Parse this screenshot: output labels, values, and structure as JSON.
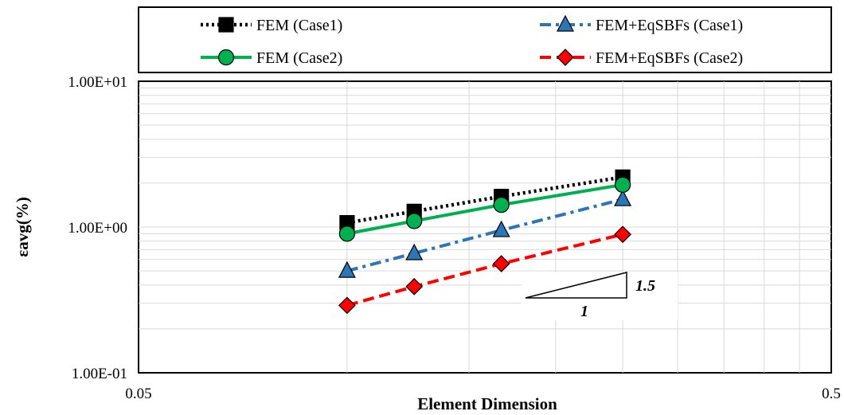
{
  "chart_data": {
    "type": "line",
    "xlabel": "Element Dimension",
    "ylabel": "εavg(%)",
    "xscale": "log",
    "yscale": "log",
    "xlim": [
      0.05,
      0.5
    ],
    "ylim": [
      0.1,
      10
    ],
    "x_tick_labels": [
      "0.05",
      "0.5"
    ],
    "y_tick_labels": [
      "1.00E-01",
      "1.00E+00",
      "1.00E+01"
    ],
    "grid": true,
    "legend_position": "top",
    "x": [
      0.1,
      0.125,
      0.167,
      0.25
    ],
    "series": [
      {
        "name": "FEM (Case1)",
        "values": [
          1.07,
          1.28,
          1.62,
          2.2
        ],
        "color": "#000000",
        "style": "dotted",
        "marker": "square"
      },
      {
        "name": "FEM+EqSBFs (Case1)",
        "values": [
          0.5,
          0.66,
          0.95,
          1.55
        ],
        "color": "#2E75B6",
        "style": "dash-dot",
        "marker": "triangle"
      },
      {
        "name": "FEM (Case2)",
        "values": [
          0.9,
          1.1,
          1.42,
          1.95
        ],
        "color": "#00B050",
        "style": "solid",
        "marker": "circle"
      },
      {
        "name": "FEM+EqSBFs (Case2)",
        "values": [
          0.29,
          0.39,
          0.56,
          0.89
        ],
        "color": "#FF0000",
        "style": "dashed",
        "marker": "diamond"
      }
    ],
    "slope_triangle": {
      "rise_label": "1.5",
      "run_label": "1"
    }
  }
}
